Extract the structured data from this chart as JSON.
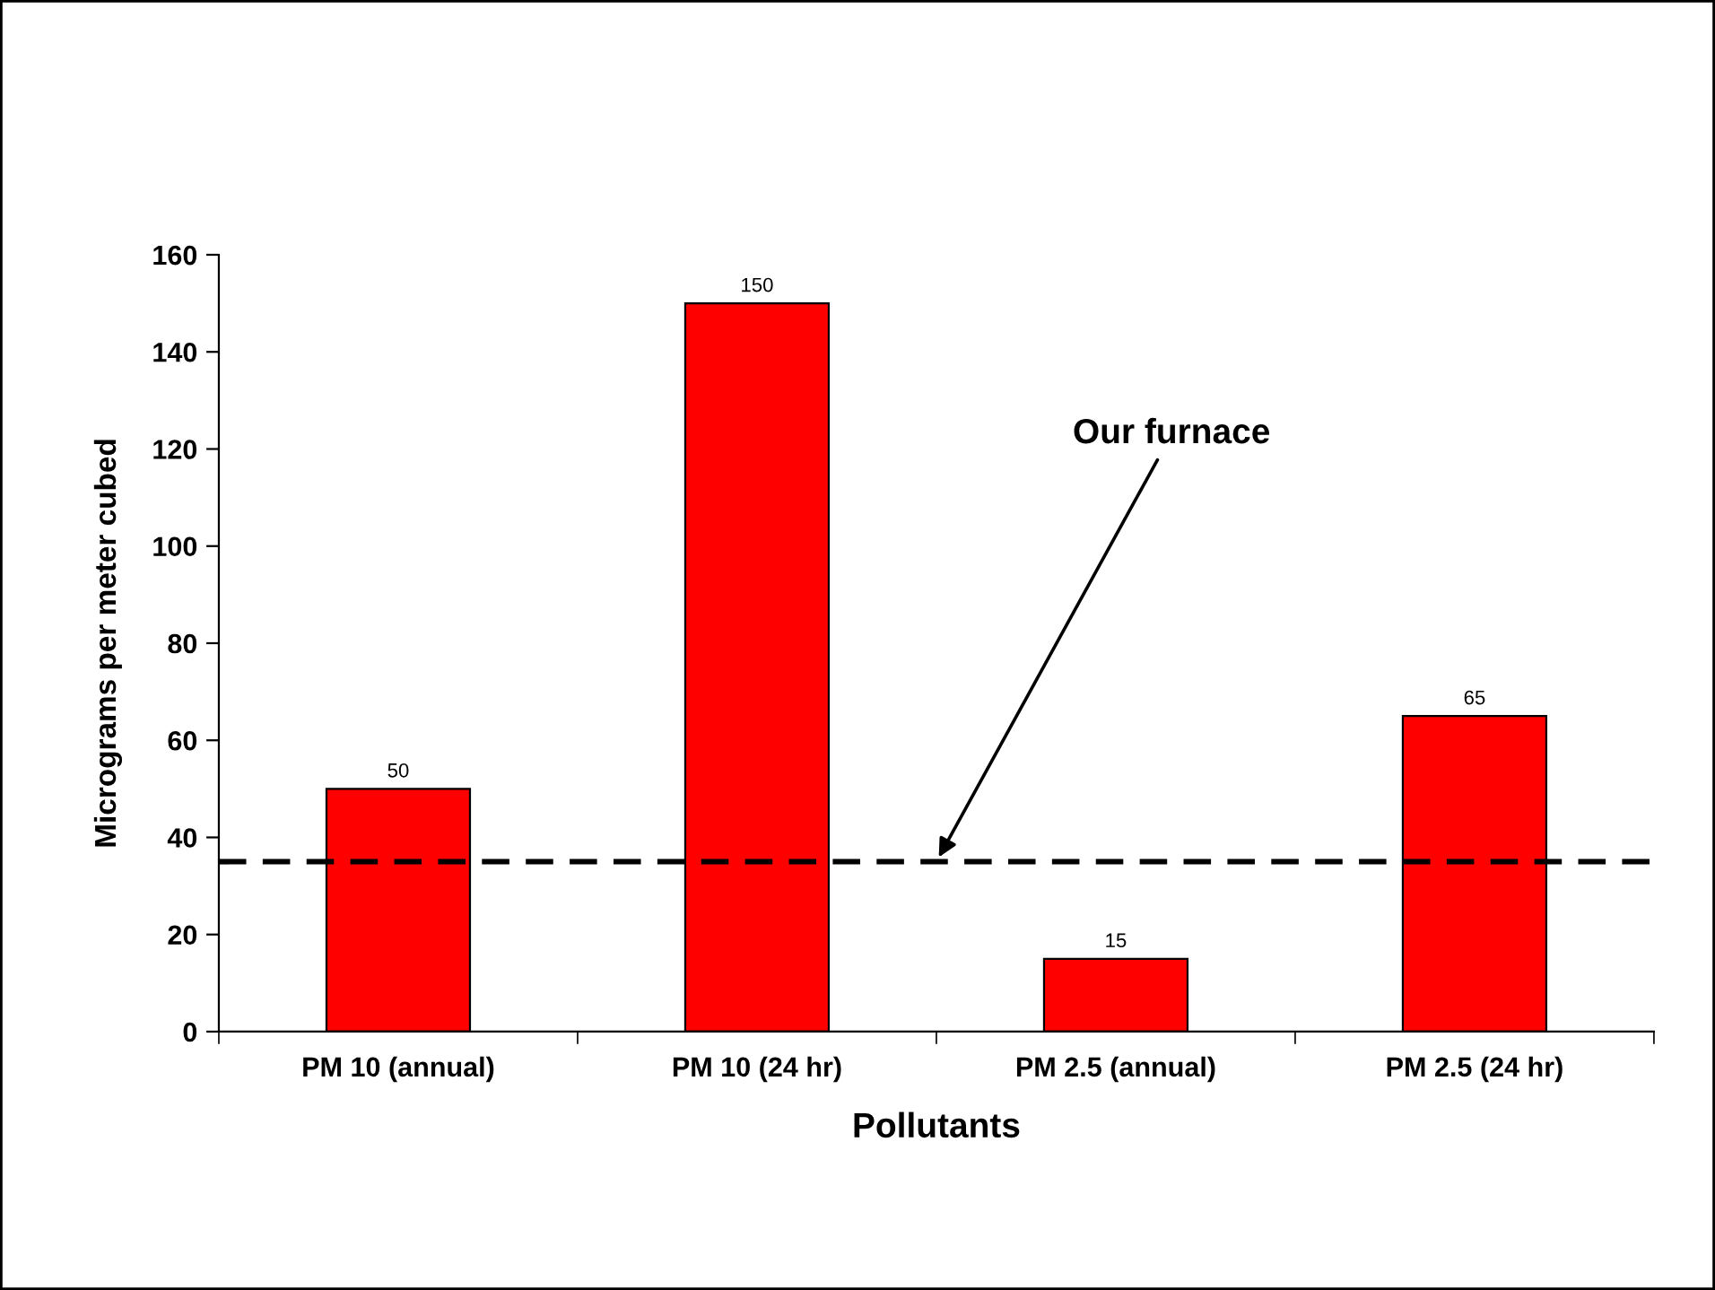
{
  "chart_data": {
    "type": "bar",
    "xlabel": "Pollutants",
    "ylabel": "Micrograms per meter cubed",
    "categories": [
      "PM 10 (annual)",
      "PM 10 (24 hr)",
      "PM 2.5 (annual)",
      "PM 2.5 (24 hr)"
    ],
    "values": [
      50,
      150,
      15,
      65
    ],
    "color": "#ff0000",
    "ylim": [
      0,
      160
    ],
    "yticks": [
      0,
      20,
      40,
      60,
      80,
      100,
      120,
      140,
      160
    ],
    "data_labels": true,
    "grid": false,
    "legend": false,
    "ref_lines": [
      {
        "axis": "y",
        "value": 35,
        "label": "Our furnace",
        "color": "#000000",
        "line_style": "dashed"
      }
    ]
  }
}
